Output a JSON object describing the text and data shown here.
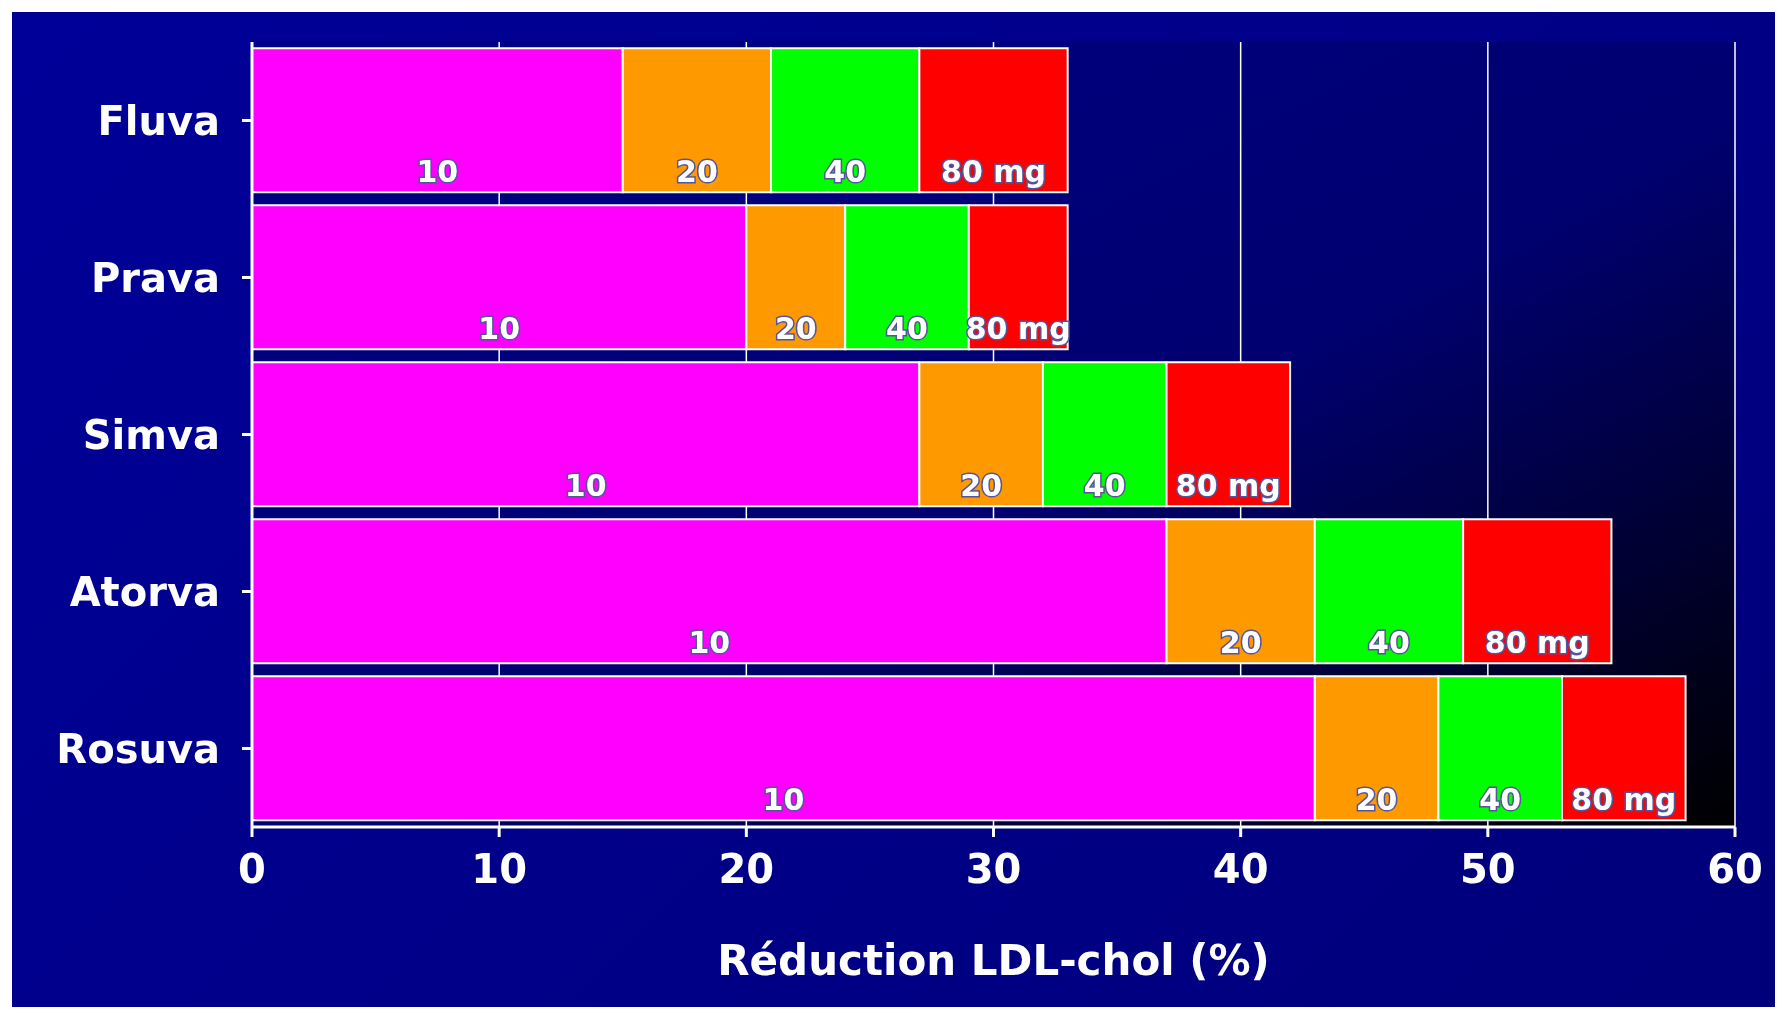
{
  "chart_data": {
    "type": "bar",
    "orientation": "horizontal",
    "stacked": true,
    "xlabel": "Réduction LDL-chol (%)",
    "categories": [
      "Fluva",
      "Prava",
      "Simva",
      "Atorva",
      "Rosuva"
    ],
    "series": [
      {
        "name": "10",
        "color": "#ff00ff",
        "values": [
          15,
          20,
          27,
          37,
          43
        ]
      },
      {
        "name": "20",
        "color": "#ff9900",
        "values": [
          6,
          4,
          5,
          6,
          5
        ]
      },
      {
        "name": "40",
        "color": "#00ff00",
        "values": [
          6,
          5,
          5,
          6,
          5
        ]
      },
      {
        "name": "80 mg",
        "color": "#ff0000",
        "values": [
          6,
          4,
          5,
          6,
          5
        ]
      }
    ],
    "xlim": [
      0,
      60
    ],
    "xticks": [
      0,
      10,
      20,
      30,
      40,
      50,
      60
    ],
    "grid": "x",
    "legend": false
  }
}
